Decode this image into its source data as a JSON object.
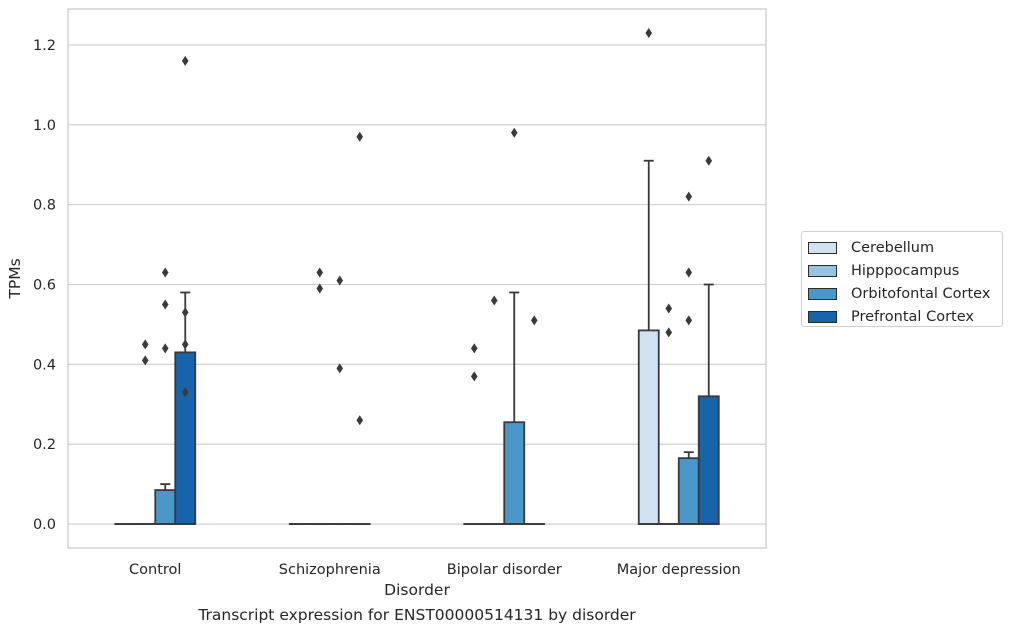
{
  "chart_data": {
    "type": "boxplot",
    "title": "",
    "xlabel": "Disorder",
    "ylabel": "TPMs",
    "ylim": [
      -0.06,
      1.29
    ],
    "yticks": [
      0.0,
      0.2,
      0.4,
      0.6,
      0.8,
      1.0,
      1.2
    ],
    "ytick_labels": [
      "0.0",
      "0.2",
      "0.4",
      "0.6",
      "0.8",
      "1.0",
      "1.2"
    ],
    "grid": true,
    "legend_position": "right",
    "categories": [
      "Control",
      "Schizophrenia",
      "Bipolar disorder",
      "Major depression"
    ],
    "series": [
      {
        "name": "Cerebellum",
        "color": "#d0e1f2",
        "boxes": [
          {
            "q1": 0,
            "median": 0,
            "q3": 0,
            "whislo": 0,
            "whishi": 0,
            "fliers": []
          },
          {
            "q1": 0,
            "median": 0,
            "q3": 0,
            "whislo": 0,
            "whishi": 0,
            "fliers": []
          },
          {
            "q1": 0,
            "median": 0,
            "q3": 0,
            "whislo": 0,
            "whishi": 0,
            "fliers": [
              0.44,
              0.37
            ]
          },
          {
            "q1": 0,
            "median": 0,
            "q3": 0.485,
            "whislo": 0,
            "whishi": 0.91,
            "fliers": [
              1.23
            ]
          }
        ]
      },
      {
        "name": "Hipppocampus",
        "color": "#94c4df",
        "boxes": [
          {
            "q1": 0,
            "median": 0,
            "q3": 0,
            "whislo": 0,
            "whishi": 0,
            "fliers": [
              0.45,
              0.41
            ]
          },
          {
            "q1": 0,
            "median": 0,
            "q3": 0,
            "whislo": 0,
            "whishi": 0,
            "fliers": [
              0.63,
              0.59
            ]
          },
          {
            "q1": 0,
            "median": 0,
            "q3": 0,
            "whislo": 0,
            "whishi": 0,
            "fliers": [
              0.56
            ]
          },
          {
            "q1": 0,
            "median": 0,
            "q3": 0,
            "whislo": 0,
            "whishi": 0,
            "fliers": [
              0.54,
              0.48
            ]
          }
        ]
      },
      {
        "name": "Orbitofontal Cortex",
        "color": "#4a98c9",
        "boxes": [
          {
            "q1": 0,
            "median": 0,
            "q3": 0.085,
            "whislo": 0,
            "whishi": 0.1,
            "fliers": [
              0.63,
              0.55,
              0.44
            ]
          },
          {
            "q1": 0,
            "median": 0,
            "q3": 0,
            "whislo": 0,
            "whishi": 0,
            "fliers": [
              0.61,
              0.39
            ]
          },
          {
            "q1": 0,
            "median": 0,
            "q3": 0.255,
            "whislo": 0,
            "whishi": 0.58,
            "fliers": [
              0.98
            ]
          },
          {
            "q1": 0,
            "median": 0,
            "q3": 0.165,
            "whislo": 0,
            "whishi": 0.18,
            "fliers": [
              0.82,
              0.63,
              0.51
            ]
          }
        ]
      },
      {
        "name": "Prefrontal Cortex",
        "color": "#1764ab",
        "boxes": [
          {
            "q1": 0,
            "median": 0,
            "q3": 0.43,
            "whislo": 0,
            "whishi": 0.58,
            "fliers": [
              1.16,
              0.53,
              0.45,
              0.33
            ]
          },
          {
            "q1": 0,
            "median": 0,
            "q3": 0,
            "whislo": 0,
            "whishi": 0,
            "fliers": [
              0.97,
              0.26
            ]
          },
          {
            "q1": 0,
            "median": 0,
            "q3": 0,
            "whislo": 0,
            "whishi": 0,
            "fliers": [
              0.51
            ]
          },
          {
            "q1": 0,
            "median": 0,
            "q3": 0.32,
            "whislo": 0,
            "whishi": 0.6,
            "fliers": [
              0.91
            ]
          }
        ]
      }
    ]
  },
  "caption": "Transcript expression for ENST00000514131 by disorder"
}
